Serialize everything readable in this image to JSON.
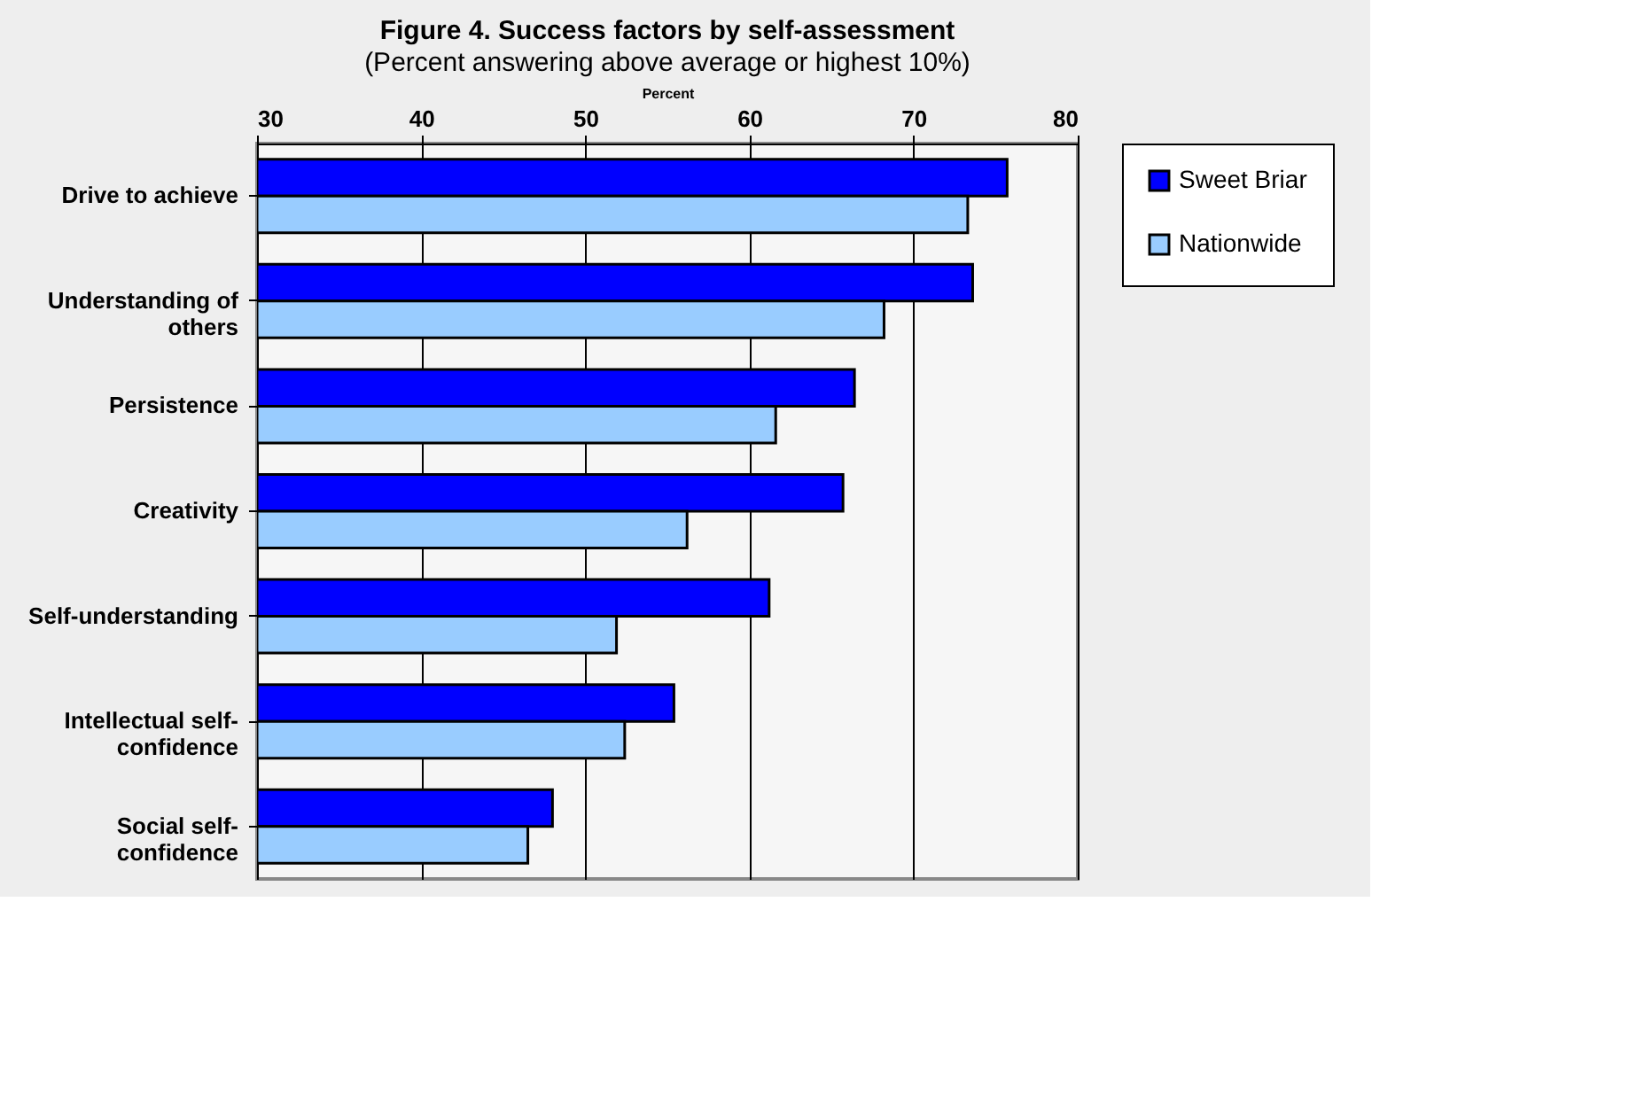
{
  "chart_data": {
    "type": "bar",
    "orientation": "horizontal",
    "title": "Figure 4.  Success factors by self-assessment",
    "subtitle": "(Percent answering above average or highest 10%)",
    "xlabel": "Percent",
    "categories": [
      "Drive to achieve",
      "Understanding of others",
      "Persistence",
      "Creativity",
      "Self-understanding",
      "Intellectual self-confidence",
      "Social self-confidence"
    ],
    "series": [
      {
        "name": "Sweet Briar",
        "color": "#0000ff",
        "values": [
          75.7,
          73.6,
          66.4,
          65.7,
          61.2,
          55.4,
          48.0
        ]
      },
      {
        "name": "Nationwide",
        "color": "#99ccff",
        "values": [
          73.3,
          68.2,
          61.6,
          56.2,
          51.9,
          52.4,
          46.5
        ]
      }
    ],
    "xlim": [
      30,
      80
    ],
    "xticks": [
      30,
      40,
      50,
      60,
      70,
      80
    ],
    "grid": "x",
    "legend": "right"
  }
}
